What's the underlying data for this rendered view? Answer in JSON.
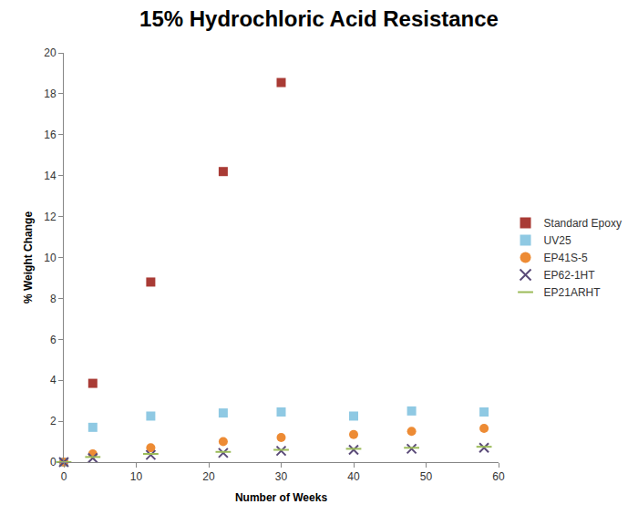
{
  "chart_data": {
    "type": "scatter",
    "title": "15% Hydrochloric Acid Resistance",
    "x_label": "Number of Weeks",
    "y_label": "% Weight Change",
    "xlim": [
      0,
      60
    ],
    "xticks": [
      0,
      10,
      20,
      30,
      40,
      50,
      60
    ],
    "ylim": [
      0,
      20
    ],
    "yticks": [
      0,
      2,
      4,
      6,
      8,
      10,
      12,
      14,
      16,
      18,
      20
    ],
    "grid": false,
    "legend": "right",
    "series": [
      {
        "name": "Standard Epoxy",
        "color": "#a93b35",
        "marker": "square",
        "x": [
          0,
          4,
          12,
          22,
          30
        ],
        "values": [
          0,
          3.85,
          8.8,
          14.2,
          18.55
        ]
      },
      {
        "name": "UV25",
        "color": "#8fc9e3",
        "marker": "square",
        "x": [
          0,
          4,
          12,
          22,
          30,
          40,
          48,
          58
        ],
        "values": [
          0,
          1.7,
          2.25,
          2.4,
          2.45,
          2.25,
          2.5,
          2.45
        ]
      },
      {
        "name": "EP41S-5",
        "color": "#ed8b34",
        "marker": "circle",
        "x": [
          0,
          4,
          12,
          22,
          30,
          40,
          48,
          58
        ],
        "values": [
          0,
          0.4,
          0.7,
          1.0,
          1.2,
          1.35,
          1.5,
          1.65
        ]
      },
      {
        "name": "EP62-1HT",
        "color": "#5a4a78",
        "marker": "x",
        "x": [
          0,
          4,
          12,
          22,
          30,
          40,
          48,
          58
        ],
        "values": [
          0,
          0.2,
          0.35,
          0.45,
          0.55,
          0.6,
          0.65,
          0.7
        ]
      },
      {
        "name": "EP21ARHT",
        "color": "#9bbb59",
        "marker": "dash",
        "x": [
          0,
          4,
          12,
          22,
          30,
          40,
          48,
          58
        ],
        "values": [
          0,
          0.25,
          0.4,
          0.5,
          0.6,
          0.65,
          0.7,
          0.75
        ]
      }
    ]
  }
}
